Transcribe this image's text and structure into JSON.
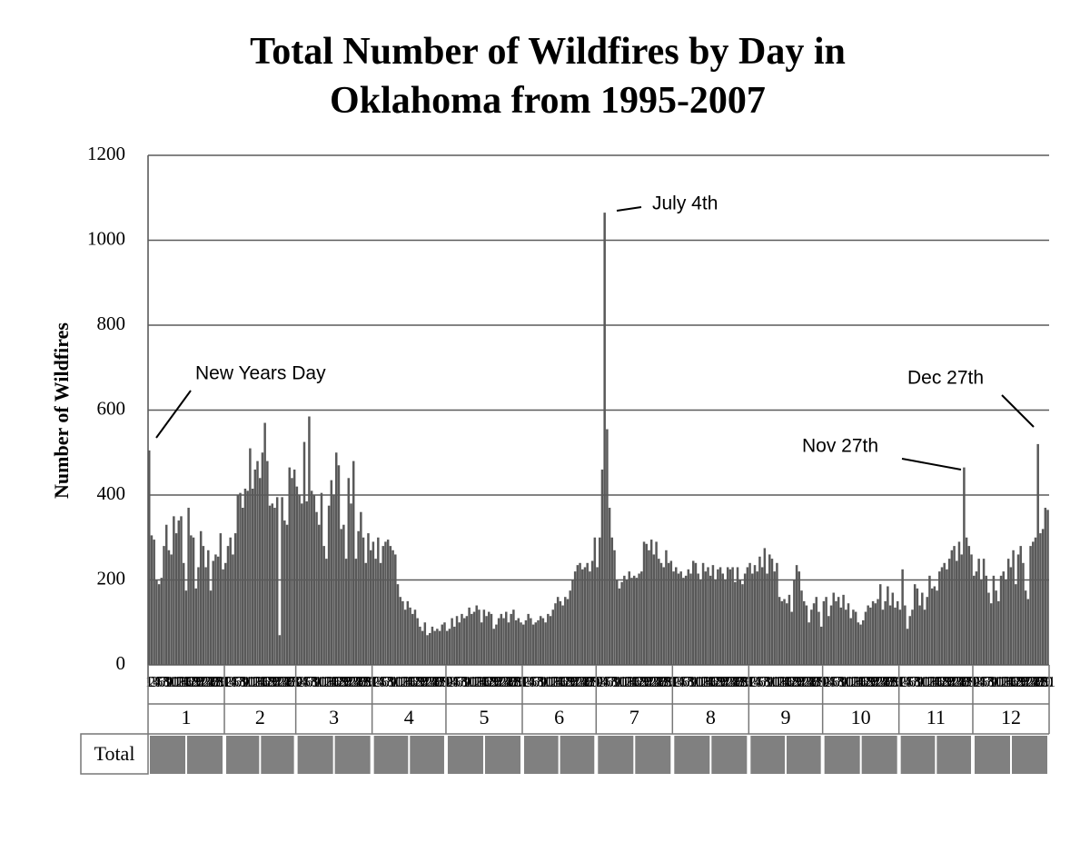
{
  "chart_data": {
    "type": "bar",
    "title": "Total Number of Wildfires by Day in Oklahoma from 1995-2007",
    "y_label": "Number of Wildfires",
    "color": "#595959",
    "ylim": [
      0,
      1200
    ],
    "yticks": [
      0,
      200,
      400,
      600,
      800,
      1000,
      1200
    ],
    "grid": true,
    "row_label": "Total",
    "annotations": [
      "New Years Day",
      "July 4th",
      "Nov 27th",
      "Dec 27th"
    ],
    "months": [
      {
        "label": "1",
        "days": [
          1,
          2,
          3,
          4,
          5,
          6,
          7,
          8,
          9,
          10,
          11,
          12,
          13,
          14,
          15,
          16,
          17,
          18,
          19,
          20,
          21,
          22,
          23,
          24,
          25,
          26,
          27,
          28,
          29,
          30,
          31
        ],
        "values": [
          505,
          305,
          295,
          200,
          190,
          205,
          280,
          330,
          270,
          260,
          350,
          310,
          340,
          350,
          240,
          175,
          370,
          305,
          300,
          180,
          230,
          315,
          280,
          230,
          270,
          175,
          245,
          260,
          255,
          310,
          225
        ]
      },
      {
        "label": "2",
        "days": [
          1,
          2,
          3,
          4,
          5,
          6,
          7,
          8,
          9,
          10,
          11,
          12,
          13,
          14,
          15,
          16,
          17,
          18,
          19,
          20,
          21,
          22,
          23,
          24,
          25,
          26,
          27,
          28,
          29
        ],
        "values": [
          240,
          280,
          300,
          260,
          310,
          400,
          405,
          370,
          415,
          410,
          510,
          415,
          460,
          480,
          440,
          500,
          570,
          480,
          375,
          380,
          370,
          395,
          70,
          395,
          340,
          330,
          465,
          440,
          460
        ]
      },
      {
        "label": "3",
        "days": [
          1,
          2,
          3,
          4,
          5,
          6,
          7,
          8,
          9,
          10,
          11,
          12,
          13,
          14,
          15,
          16,
          17,
          18,
          19,
          20,
          21,
          22,
          23,
          24,
          25,
          26,
          27,
          28,
          29,
          30,
          31
        ],
        "values": [
          420,
          400,
          380,
          525,
          385,
          585,
          410,
          400,
          360,
          330,
          405,
          280,
          250,
          375,
          435,
          400,
          500,
          470,
          320,
          330,
          250,
          440,
          380,
          480,
          250,
          315,
          360,
          300,
          240,
          310,
          270
        ]
      },
      {
        "label": "4",
        "days": [
          1,
          2,
          3,
          4,
          5,
          6,
          7,
          8,
          9,
          10,
          11,
          12,
          13,
          14,
          15,
          16,
          17,
          18,
          19,
          20,
          21,
          22,
          23,
          24,
          25,
          26,
          27,
          28,
          29,
          30
        ],
        "values": [
          290,
          250,
          300,
          240,
          280,
          290,
          295,
          280,
          270,
          260,
          190,
          160,
          150,
          130,
          150,
          135,
          120,
          130,
          110,
          90,
          80,
          100,
          70,
          75,
          90,
          80,
          85,
          80,
          95,
          100
        ]
      },
      {
        "label": "5",
        "days": [
          1,
          2,
          3,
          4,
          5,
          6,
          7,
          8,
          9,
          10,
          11,
          12,
          13,
          14,
          15,
          16,
          17,
          18,
          19,
          20,
          21,
          22,
          23,
          24,
          25,
          26,
          27,
          28,
          29,
          30,
          31
        ],
        "values": [
          80,
          85,
          110,
          90,
          115,
          100,
          120,
          110,
          115,
          135,
          120,
          125,
          140,
          130,
          100,
          130,
          115,
          125,
          120,
          85,
          95,
          110,
          120,
          110,
          125,
          100,
          120,
          130,
          105,
          110,
          100
        ]
      },
      {
        "label": "6",
        "days": [
          1,
          2,
          3,
          4,
          5,
          6,
          7,
          8,
          9,
          10,
          11,
          12,
          13,
          14,
          15,
          16,
          17,
          18,
          19,
          20,
          21,
          22,
          23,
          24,
          25,
          26,
          27,
          28,
          29,
          30
        ],
        "values": [
          95,
          105,
          120,
          110,
          95,
          100,
          105,
          115,
          110,
          100,
          120,
          115,
          130,
          145,
          160,
          150,
          140,
          160,
          155,
          175,
          200,
          220,
          235,
          240,
          225,
          230,
          240,
          220,
          245,
          300
        ]
      },
      {
        "label": "7",
        "days": [
          1,
          2,
          3,
          4,
          5,
          6,
          7,
          8,
          9,
          10,
          11,
          12,
          13,
          14,
          15,
          16,
          17,
          18,
          19,
          20,
          21,
          22,
          23,
          24,
          25,
          26,
          27,
          28,
          29,
          30,
          31
        ],
        "values": [
          230,
          300,
          460,
          1065,
          555,
          370,
          300,
          270,
          200,
          180,
          195,
          210,
          200,
          220,
          205,
          210,
          205,
          215,
          220,
          290,
          285,
          270,
          295,
          260,
          290,
          250,
          240,
          230,
          270,
          240,
          245
        ]
      },
      {
        "label": "8",
        "days": [
          1,
          2,
          3,
          4,
          5,
          6,
          7,
          8,
          9,
          10,
          11,
          12,
          13,
          14,
          15,
          16,
          17,
          18,
          19,
          20,
          21,
          22,
          23,
          24,
          25,
          26,
          27,
          28,
          29,
          30,
          31
        ],
        "values": [
          220,
          230,
          215,
          220,
          205,
          210,
          225,
          215,
          245,
          240,
          215,
          200,
          240,
          220,
          230,
          210,
          235,
          200,
          225,
          230,
          215,
          200,
          230,
          225,
          230,
          195,
          230,
          200,
          190,
          215,
          230
        ]
      },
      {
        "label": "9",
        "days": [
          1,
          2,
          3,
          4,
          5,
          6,
          7,
          8,
          9,
          10,
          11,
          12,
          13,
          14,
          15,
          16,
          17,
          18,
          19,
          20,
          21,
          22,
          23,
          24,
          25,
          26,
          27,
          28,
          29,
          30
        ],
        "values": [
          240,
          215,
          235,
          220,
          255,
          230,
          275,
          215,
          260,
          250,
          220,
          240,
          160,
          150,
          155,
          145,
          165,
          125,
          200,
          235,
          220,
          175,
          150,
          140,
          100,
          130,
          145,
          160,
          125,
          90
        ]
      },
      {
        "label": "10",
        "days": [
          1,
          2,
          3,
          4,
          5,
          6,
          7,
          8,
          9,
          10,
          11,
          12,
          13,
          14,
          15,
          16,
          17,
          18,
          19,
          20,
          21,
          22,
          23,
          24,
          25,
          26,
          27,
          28,
          29,
          30,
          31
        ],
        "values": [
          150,
          160,
          115,
          140,
          170,
          150,
          160,
          135,
          165,
          130,
          145,
          110,
          130,
          125,
          100,
          95,
          105,
          125,
          140,
          135,
          150,
          145,
          155,
          190,
          130,
          150,
          185,
          140,
          170,
          135,
          150
        ]
      },
      {
        "label": "11",
        "days": [
          1,
          2,
          3,
          4,
          5,
          6,
          7,
          8,
          9,
          10,
          11,
          12,
          13,
          14,
          15,
          16,
          17,
          18,
          19,
          20,
          21,
          22,
          23,
          24,
          25,
          26,
          27,
          28,
          29,
          30
        ],
        "values": [
          130,
          225,
          140,
          85,
          115,
          130,
          190,
          180,
          140,
          170,
          130,
          160,
          210,
          180,
          185,
          175,
          220,
          230,
          240,
          225,
          250,
          270,
          280,
          245,
          290,
          260,
          465,
          300,
          280,
          260
        ]
      },
      {
        "label": "12",
        "days": [
          1,
          2,
          3,
          4,
          5,
          6,
          7,
          8,
          9,
          10,
          11,
          12,
          13,
          14,
          15,
          16,
          17,
          18,
          19,
          20,
          21,
          22,
          23,
          24,
          25,
          26,
          27,
          28,
          29,
          30,
          31
        ],
        "values": [
          210,
          220,
          250,
          200,
          250,
          210,
          170,
          145,
          210,
          175,
          150,
          210,
          220,
          200,
          250,
          230,
          270,
          190,
          260,
          280,
          240,
          175,
          155,
          280,
          290,
          300,
          520,
          310,
          320,
          370,
          365
        ]
      }
    ]
  }
}
